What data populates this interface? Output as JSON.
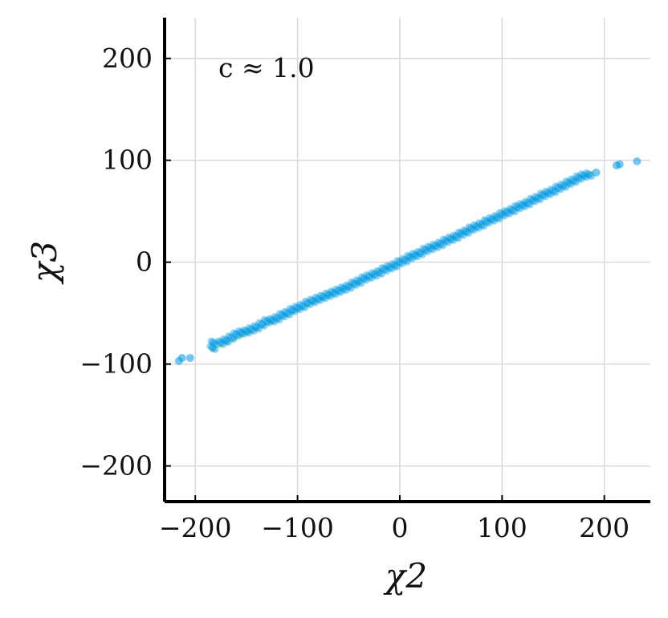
{
  "chart_data": {
    "type": "scatter",
    "title": "",
    "xlabel": "χ2",
    "ylabel": "χ3",
    "xlim": [
      -230,
      245
    ],
    "ylim": [
      -235,
      240
    ],
    "xticks": [
      -200,
      -100,
      0,
      100,
      200
    ],
    "yticks": [
      -200,
      -100,
      0,
      100,
      200
    ],
    "xtick_labels": [
      "−200",
      "−100",
      "0",
      "100",
      "200"
    ],
    "ytick_labels": [
      "−200",
      "−100",
      "0",
      "100",
      "200"
    ],
    "grid": true,
    "annotation": "c ≈ 1.0",
    "point_color": "#0099e6",
    "fit_line_color": "#c8e64b",
    "fit_line": {
      "slope": 0.47,
      "intercept": 0,
      "x_range": [
        -185,
        190
      ]
    },
    "points": [
      [
        -216,
        -97
      ],
      [
        -213,
        -94
      ],
      [
        -205,
        -94
      ],
      [
        -183,
        -84
      ],
      [
        -182,
        -79
      ],
      [
        -175,
        -79
      ],
      [
        -170,
        -77
      ],
      [
        -165,
        -74
      ],
      [
        -160,
        -71
      ],
      [
        -155,
        -69
      ],
      [
        -150,
        -68
      ],
      [
        -145,
        -66
      ],
      [
        -140,
        -64
      ],
      [
        -135,
        -61
      ],
      [
        -130,
        -58
      ],
      [
        -125,
        -57
      ],
      [
        -120,
        -55
      ],
      [
        -115,
        -52
      ],
      [
        -110,
        -50
      ],
      [
        -105,
        -47
      ],
      [
        -100,
        -45
      ],
      [
        -95,
        -43
      ],
      [
        -90,
        -40
      ],
      [
        -85,
        -38
      ],
      [
        -80,
        -36
      ],
      [
        -75,
        -34
      ],
      [
        -70,
        -32
      ],
      [
        -65,
        -30
      ],
      [
        -60,
        -28
      ],
      [
        -55,
        -26
      ],
      [
        -50,
        -24
      ],
      [
        -45,
        -21
      ],
      [
        -40,
        -19
      ],
      [
        -35,
        -16
      ],
      [
        -30,
        -14
      ],
      [
        -25,
        -12
      ],
      [
        -20,
        -10
      ],
      [
        -15,
        -7
      ],
      [
        -10,
        -5
      ],
      [
        -5,
        -3
      ],
      [
        0,
        0
      ],
      [
        5,
        2
      ],
      [
        10,
        5
      ],
      [
        15,
        7
      ],
      [
        20,
        9
      ],
      [
        25,
        12
      ],
      [
        30,
        14
      ],
      [
        35,
        16
      ],
      [
        40,
        18
      ],
      [
        45,
        21
      ],
      [
        50,
        23
      ],
      [
        55,
        25
      ],
      [
        60,
        28
      ],
      [
        65,
        30
      ],
      [
        70,
        33
      ],
      [
        75,
        35
      ],
      [
        80,
        37
      ],
      [
        85,
        40
      ],
      [
        90,
        42
      ],
      [
        95,
        44
      ],
      [
        100,
        47
      ],
      [
        105,
        49
      ],
      [
        110,
        51
      ],
      [
        115,
        54
      ],
      [
        120,
        56
      ],
      [
        125,
        58
      ],
      [
        130,
        61
      ],
      [
        135,
        63
      ],
      [
        140,
        66
      ],
      [
        145,
        68
      ],
      [
        150,
        70
      ],
      [
        155,
        73
      ],
      [
        160,
        75
      ],
      [
        165,
        78
      ],
      [
        170,
        80
      ],
      [
        175,
        83
      ],
      [
        180,
        85
      ],
      [
        185,
        86
      ],
      [
        192,
        88
      ],
      [
        212,
        95
      ],
      [
        215,
        96
      ],
      [
        232,
        99
      ]
    ]
  }
}
